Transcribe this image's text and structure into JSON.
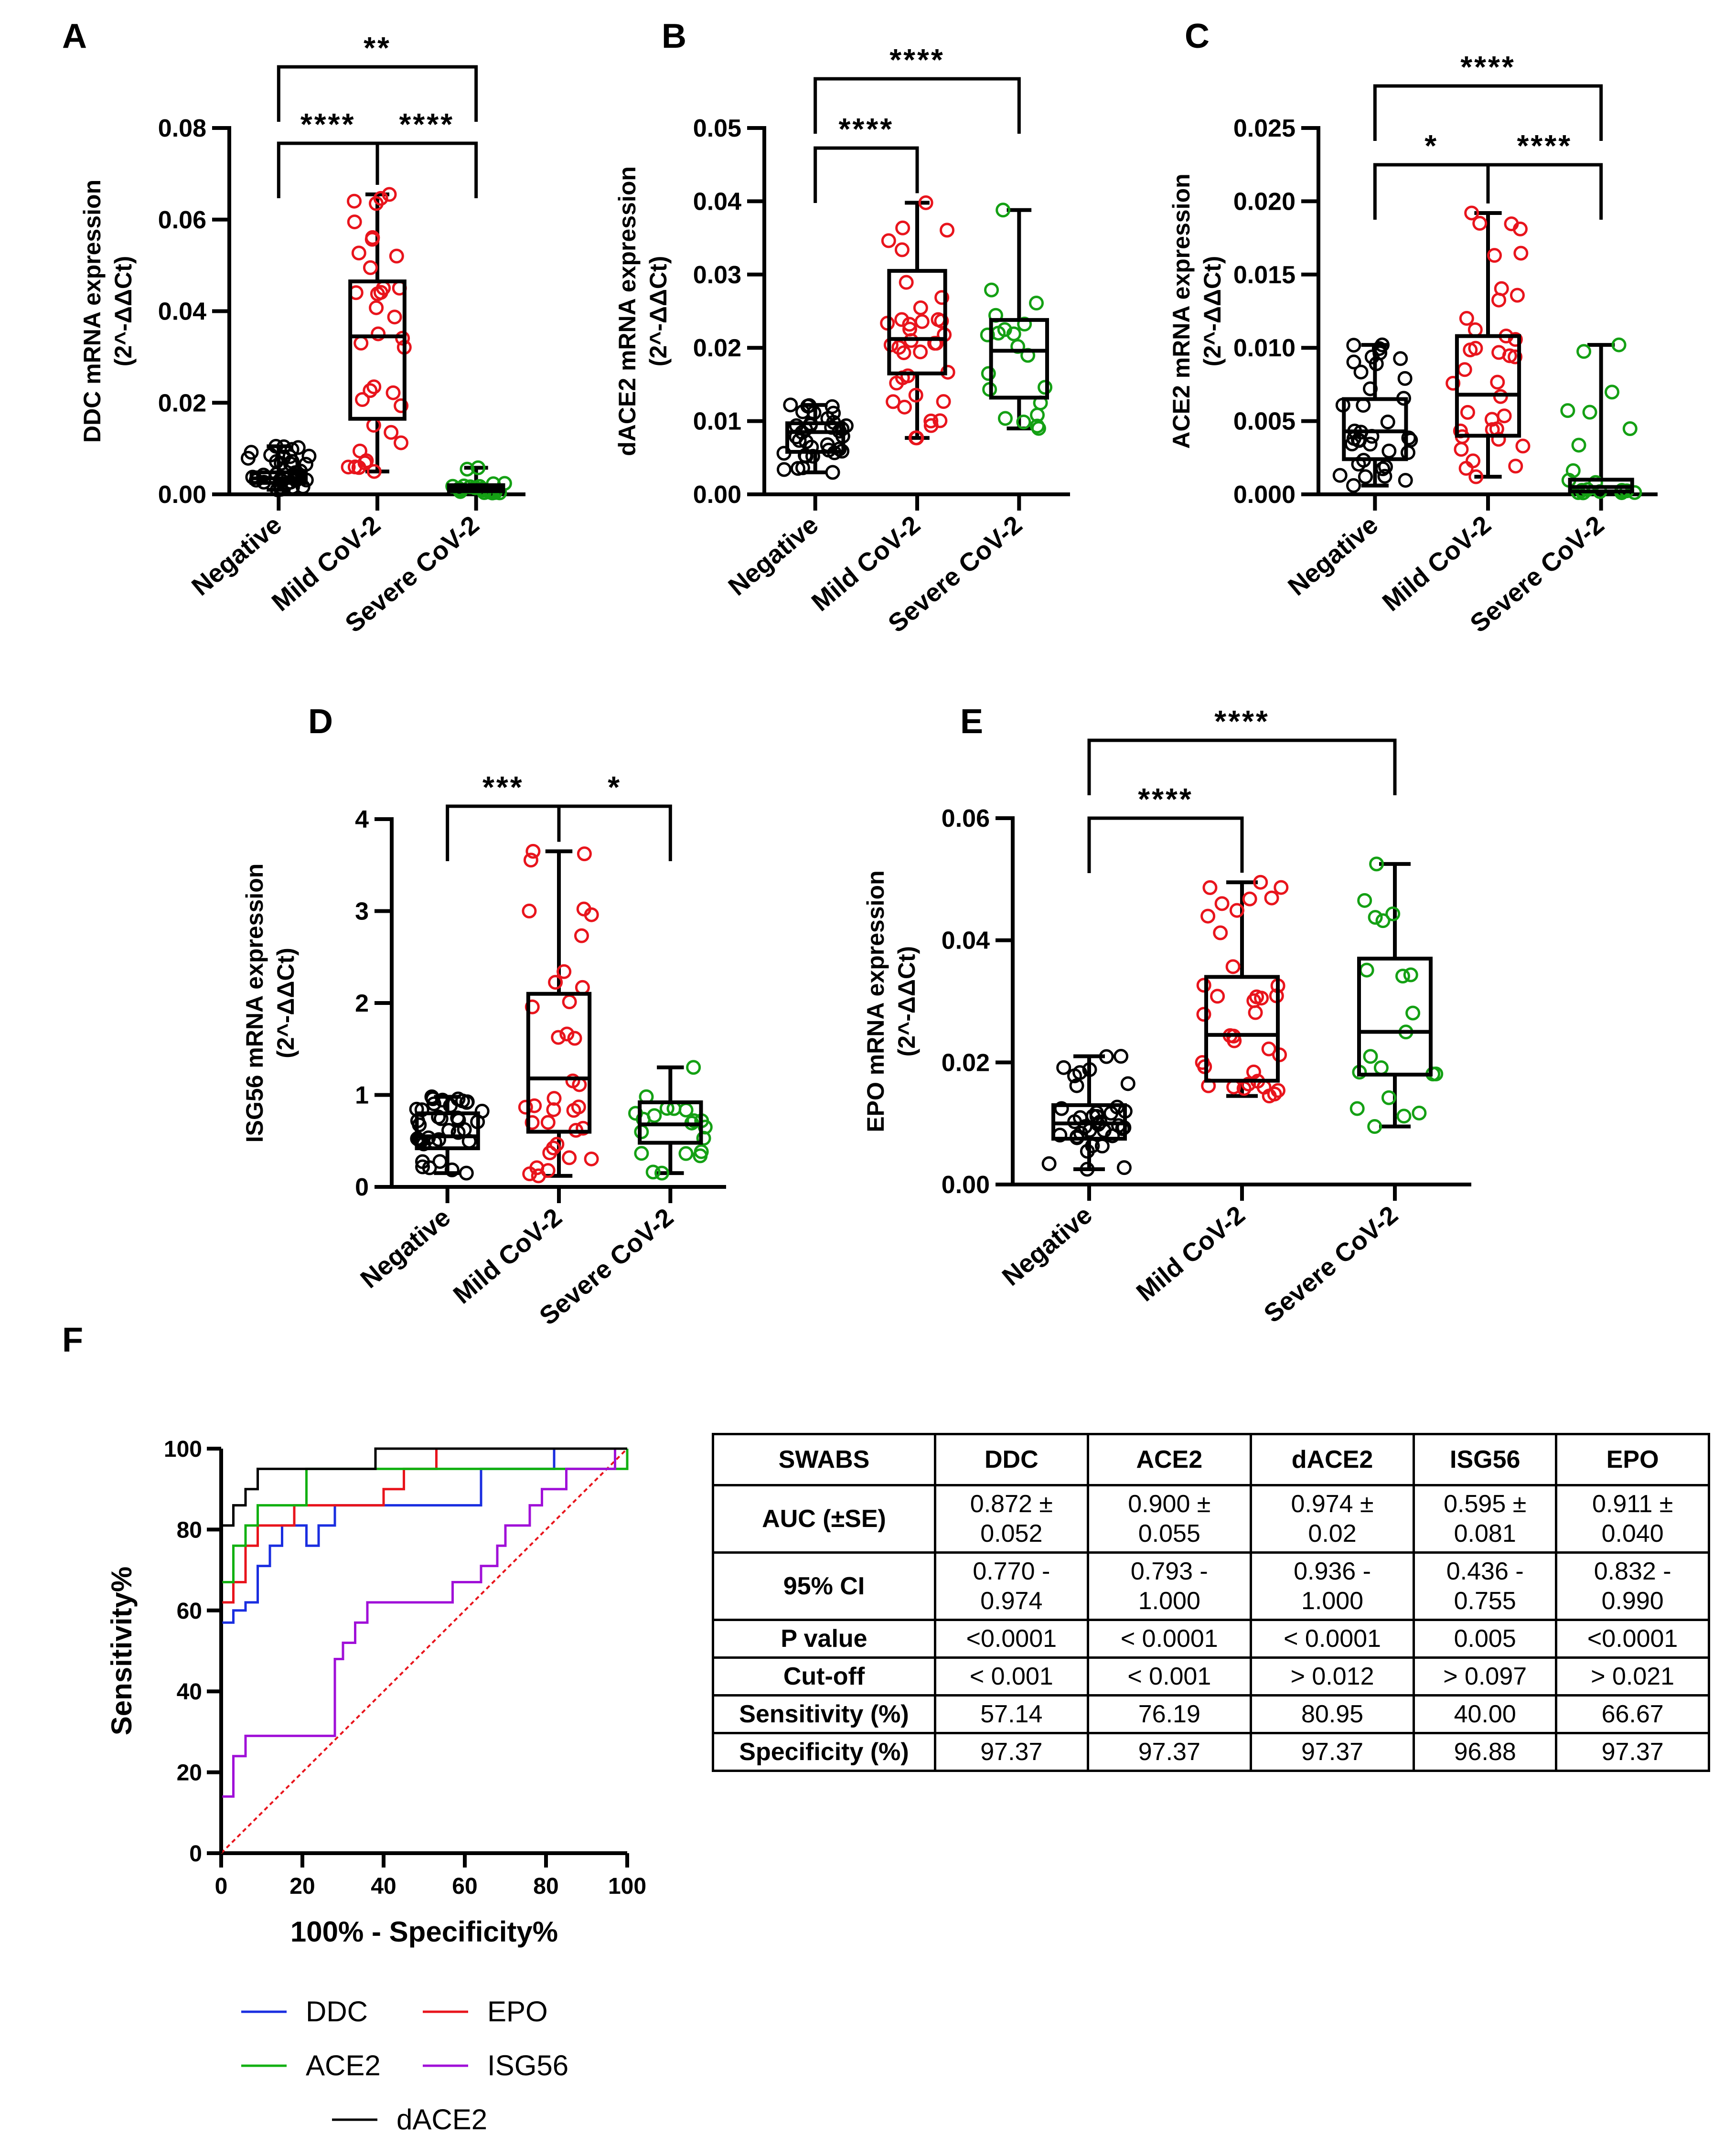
{
  "chart_data": [
    {
      "type": "box",
      "panel": "A",
      "ylabel": "DDC mRNA expression",
      "ylabel2": "(2^-ΔΔCt)",
      "categories": [
        "Negative",
        "Mild CoV-2",
        "Severe CoV-2"
      ],
      "ylim": [
        0,
        0.08
      ],
      "yticks": [
        0.0,
        0.02,
        0.04,
        0.06,
        0.08
      ],
      "ytick_labels": [
        "0.00",
        "0.02",
        "0.04",
        "0.06",
        "0.08"
      ],
      "colors": [
        "#000000",
        "#e8141c",
        "#14a014"
      ],
      "boxes": [
        {
          "min": 0.001,
          "q1": 0.0025,
          "median": 0.0035,
          "q3": 0.0048,
          "max": 0.0105
        },
        {
          "min": 0.005,
          "q1": 0.0165,
          "median": 0.0345,
          "q3": 0.0465,
          "max": 0.0655
        },
        {
          "min": 0.0003,
          "q1": 0.0007,
          "median": 0.0012,
          "q3": 0.002,
          "max": 0.0058
        }
      ],
      "comparisons": [
        {
          "from": 0,
          "to": 1,
          "label": "****",
          "level": 1
        },
        {
          "from": 1,
          "to": 2,
          "label": "****",
          "level": 1
        },
        {
          "from": 0,
          "to": 2,
          "label": "**",
          "level": 2
        }
      ]
    },
    {
      "type": "box",
      "panel": "B",
      "ylabel": "dACE2 mRNA expression",
      "ylabel2": "(2^-ΔΔCt)",
      "categories": [
        "Negative",
        "Mild CoV-2",
        "Severe CoV-2"
      ],
      "ylim": [
        0,
        0.05
      ],
      "yticks": [
        0.0,
        0.01,
        0.02,
        0.03,
        0.04,
        0.05
      ],
      "ytick_labels": [
        "0.00",
        "0.01",
        "0.02",
        "0.03",
        "0.04",
        "0.05"
      ],
      "colors": [
        "#000000",
        "#e8141c",
        "#14a014"
      ],
      "boxes": [
        {
          "min": 0.003,
          "q1": 0.0058,
          "median": 0.0085,
          "q3": 0.0097,
          "max": 0.0122
        },
        {
          "min": 0.0077,
          "q1": 0.0165,
          "median": 0.0212,
          "q3": 0.0305,
          "max": 0.0398
        },
        {
          "min": 0.009,
          "q1": 0.0132,
          "median": 0.0196,
          "q3": 0.0238,
          "max": 0.0388
        }
      ],
      "comparisons": [
        {
          "from": 0,
          "to": 1,
          "label": "****",
          "level": 1
        },
        {
          "from": 0,
          "to": 2,
          "label": "****",
          "level": 2
        }
      ]
    },
    {
      "type": "box",
      "panel": "C",
      "ylabel": "ACE2 mRNA expression",
      "ylabel2": "(2^-ΔΔCt)",
      "categories": [
        "Negative",
        "Mild CoV-2",
        "Severe CoV-2"
      ],
      "ylim": [
        0,
        0.025
      ],
      "yticks": [
        0.0,
        0.005,
        0.01,
        0.015,
        0.02,
        0.025
      ],
      "ytick_labels": [
        "0.000",
        "0.005",
        "0.010",
        "0.015",
        "0.020",
        "0.025"
      ],
      "colors": [
        "#000000",
        "#e8141c",
        "#14a014"
      ],
      "boxes": [
        {
          "min": 0.0006,
          "q1": 0.0024,
          "median": 0.0043,
          "q3": 0.0065,
          "max": 0.0102
        },
        {
          "min": 0.0012,
          "q1": 0.004,
          "median": 0.0068,
          "q3": 0.0108,
          "max": 0.0192
        },
        {
          "min": 0.0001,
          "q1": 0.0002,
          "median": 0.0005,
          "q3": 0.001,
          "max": 0.0102
        }
      ],
      "comparisons": [
        {
          "from": 0,
          "to": 1,
          "label": "*",
          "level": 1
        },
        {
          "from": 1,
          "to": 2,
          "label": "****",
          "level": 1
        },
        {
          "from": 0,
          "to": 2,
          "label": "****",
          "level": 2
        }
      ]
    },
    {
      "type": "box",
      "panel": "D",
      "ylabel": "ISG56 mRNA expression",
      "ylabel2": "(2^-ΔΔCt)",
      "categories": [
        "Negative",
        "Mild CoV-2",
        "Severe CoV-2"
      ],
      "ylim": [
        0,
        4
      ],
      "yticks": [
        0,
        1,
        2,
        3,
        4
      ],
      "ytick_labels": [
        "0",
        "1",
        "2",
        "3",
        "4"
      ],
      "colors": [
        "#000000",
        "#e8141c",
        "#14a014"
      ],
      "boxes": [
        {
          "min": 0.15,
          "q1": 0.42,
          "median": 0.55,
          "q3": 0.8,
          "max": 0.98
        },
        {
          "min": 0.12,
          "q1": 0.6,
          "median": 1.18,
          "q3": 2.1,
          "max": 3.65
        },
        {
          "min": 0.15,
          "q1": 0.48,
          "median": 0.68,
          "q3": 0.92,
          "max": 1.3
        }
      ],
      "comparisons": [
        {
          "from": 0,
          "to": 1,
          "label": "***",
          "level": 1
        },
        {
          "from": 1,
          "to": 2,
          "label": "*",
          "level": 1
        }
      ]
    },
    {
      "type": "box",
      "panel": "E",
      "ylabel": "EPO mRNA expression",
      "ylabel2": "(2^-ΔΔCt)",
      "categories": [
        "Negative",
        "Mild CoV-2",
        "Severe CoV-2"
      ],
      "ylim": [
        0,
        0.06
      ],
      "yticks": [
        0.0,
        0.02,
        0.04,
        0.06
      ],
      "ytick_labels": [
        "0.00",
        "0.02",
        "0.04",
        "0.06"
      ],
      "colors": [
        "#000000",
        "#e8141c",
        "#14a014"
      ],
      "boxes": [
        {
          "min": 0.0025,
          "q1": 0.0075,
          "median": 0.01,
          "q3": 0.013,
          "max": 0.021
        },
        {
          "min": 0.0145,
          "q1": 0.017,
          "median": 0.0245,
          "q3": 0.034,
          "max": 0.0495
        },
        {
          "min": 0.0095,
          "q1": 0.018,
          "median": 0.025,
          "q3": 0.037,
          "max": 0.0525
        }
      ],
      "comparisons": [
        {
          "from": 0,
          "to": 1,
          "label": "****",
          "level": 1
        },
        {
          "from": 0,
          "to": 2,
          "label": "****",
          "level": 2
        }
      ]
    },
    {
      "type": "line",
      "panel": "F",
      "xlabel": "100% - Specificity%",
      "ylabel": "Sensitivity%",
      "xlim": [
        0,
        100
      ],
      "ylim": [
        0,
        100
      ],
      "xticks": [
        0,
        20,
        40,
        60,
        80,
        100
      ],
      "yticks": [
        0,
        20,
        40,
        60,
        80,
        100
      ],
      "reference_line": {
        "x": [
          0,
          100
        ],
        "y": [
          0,
          100
        ],
        "color": "#e8141c"
      },
      "series": [
        {
          "name": "DDC",
          "color": "#1a2ee0",
          "x": [
            0,
            0,
            3,
            3,
            6,
            6,
            9,
            9,
            12,
            12,
            15,
            15,
            21,
            21,
            24,
            24,
            28,
            28,
            64,
            64,
            82,
            82,
            100
          ],
          "y": [
            0,
            57,
            57,
            60,
            60,
            62,
            62,
            71,
            71,
            76,
            76,
            81,
            81,
            76,
            76,
            81,
            81,
            86,
            86,
            95,
            95,
            100,
            100
          ]
        },
        {
          "name": "EPO",
          "color": "#e8141c",
          "x": [
            0,
            0,
            3,
            3,
            6,
            6,
            9,
            9,
            18,
            18,
            30,
            30,
            40,
            40,
            45,
            45,
            53,
            53,
            100
          ],
          "y": [
            0,
            62,
            62,
            67,
            67,
            76,
            76,
            81,
            81,
            86,
            86,
            86,
            86,
            90,
            90,
            95,
            95,
            100,
            100
          ]
        },
        {
          "name": "ACE2",
          "color": "#12b012",
          "x": [
            0,
            0,
            3,
            3,
            6,
            6,
            9,
            9,
            21,
            21,
            100,
            100
          ],
          "y": [
            0,
            67,
            67,
            76,
            76,
            81,
            81,
            86,
            86,
            95,
            95,
            100
          ]
        },
        {
          "name": "ISG56",
          "color": "#a010d8",
          "x": [
            0,
            0,
            3,
            3,
            6,
            6,
            28,
            28,
            30,
            30,
            33,
            33,
            36,
            36,
            39,
            39,
            57,
            57,
            61,
            61,
            64,
            64,
            68,
            68,
            70,
            70,
            76,
            76,
            79,
            79,
            85,
            85,
            91,
            91,
            97,
            97,
            100
          ],
          "y": [
            0,
            14,
            14,
            24,
            24,
            29,
            29,
            48,
            48,
            52,
            52,
            57,
            57,
            62,
            62,
            62,
            62,
            67,
            67,
            67,
            67,
            71,
            71,
            76,
            76,
            81,
            81,
            86,
            86,
            90,
            90,
            95,
            95,
            95,
            95,
            100,
            100
          ]
        },
        {
          "name": "dACE2",
          "color": "#000000",
          "x": [
            0,
            0,
            3,
            3,
            6,
            6,
            9,
            9,
            38,
            38,
            100
          ],
          "y": [
            0,
            81,
            81,
            86,
            86,
            90,
            90,
            95,
            95,
            100,
            100
          ]
        }
      ]
    }
  ],
  "labels": {
    "panel_a": "A",
    "panel_b": "B",
    "panel_c": "C",
    "panel_d": "D",
    "panel_e": "E",
    "panel_f": "F"
  },
  "legend": [
    {
      "name": "DDC",
      "color": "#1a2ee0"
    },
    {
      "name": "EPO",
      "color": "#e8141c"
    },
    {
      "name": "ACE2",
      "color": "#12b012"
    },
    {
      "name": "ISG56",
      "color": "#a010d8"
    },
    {
      "name": "dACE2",
      "color": "#000000"
    }
  ],
  "table": {
    "headers": [
      "SWABS",
      "DDC",
      "ACE2",
      "dACE2",
      "ISG56",
      "EPO"
    ],
    "rows": [
      {
        "label": "AUC (±SE)",
        "cells": [
          [
            "0.872 ±",
            "0.052"
          ],
          [
            "0.900 ±",
            "0.055"
          ],
          [
            "0.974 ±",
            "0.02"
          ],
          [
            "0.595 ±",
            "0.081"
          ],
          [
            "0.911 ±",
            "0.040"
          ]
        ]
      },
      {
        "label": "95% CI",
        "cells": [
          [
            "0.770 -",
            "0.974"
          ],
          [
            "0.793 -",
            "1.000"
          ],
          [
            "0.936 -",
            "1.000"
          ],
          [
            "0.436 -",
            "0.755"
          ],
          [
            "0.832 -",
            "0.990"
          ]
        ]
      },
      {
        "label": "P value",
        "cells": [
          [
            "<0.0001"
          ],
          [
            "< 0.0001"
          ],
          [
            "< 0.0001"
          ],
          [
            "0.005"
          ],
          [
            "<0.0001"
          ]
        ]
      },
      {
        "label": "Cut-off",
        "cells": [
          [
            "< 0.001"
          ],
          [
            "< 0.001"
          ],
          [
            "> 0.012"
          ],
          [
            "> 0.097"
          ],
          [
            "> 0.021"
          ]
        ]
      },
      {
        "label": "Sensitivity (%)",
        "cells": [
          [
            "57.14"
          ],
          [
            "76.19"
          ],
          [
            "80.95"
          ],
          [
            "40.00"
          ],
          [
            "66.67"
          ]
        ]
      },
      {
        "label": "Specificity (%)",
        "cells": [
          [
            "97.37"
          ],
          [
            "97.37"
          ],
          [
            "97.37"
          ],
          [
            "96.88"
          ],
          [
            "97.37"
          ]
        ]
      }
    ]
  }
}
